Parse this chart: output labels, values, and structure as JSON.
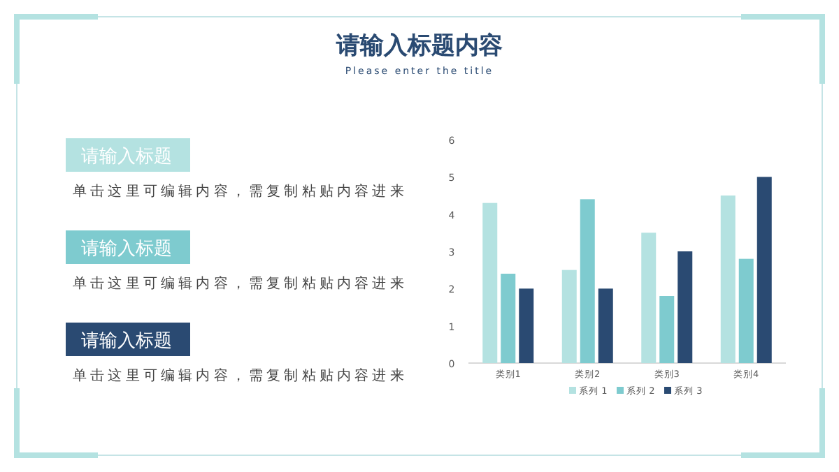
{
  "chart_data": {
    "type": "bar",
    "title": "请输入标题内容",
    "subtitle": "Please enter the title",
    "categories": [
      "类别1",
      "类别2",
      "类别3",
      "类别4"
    ],
    "series": [
      {
        "name": "系列 1",
        "color": "#b4e2e1",
        "values": [
          4.3,
          2.5,
          3.5,
          4.5
        ]
      },
      {
        "name": "系列 2",
        "color": "#7ecbcf",
        "values": [
          2.4,
          4.4,
          1.8,
          2.8
        ]
      },
      {
        "name": "系列 3",
        "color": "#2a4a72",
        "values": [
          2,
          2,
          3,
          5
        ]
      }
    ],
    "ylim": [
      0,
      6
    ],
    "yticks": [
      0,
      1,
      2,
      3,
      4,
      5,
      6
    ],
    "legend": "bottom",
    "annotations": [
      "请输入标题",
      "单击这里可编辑内容，需复制粘贴内容进来",
      "请输入标题",
      "单击这里可编辑内容，需复制粘贴内容进来",
      "请输入标题",
      "单击这里可编辑内容，需复制粘贴内容进来"
    ]
  }
}
